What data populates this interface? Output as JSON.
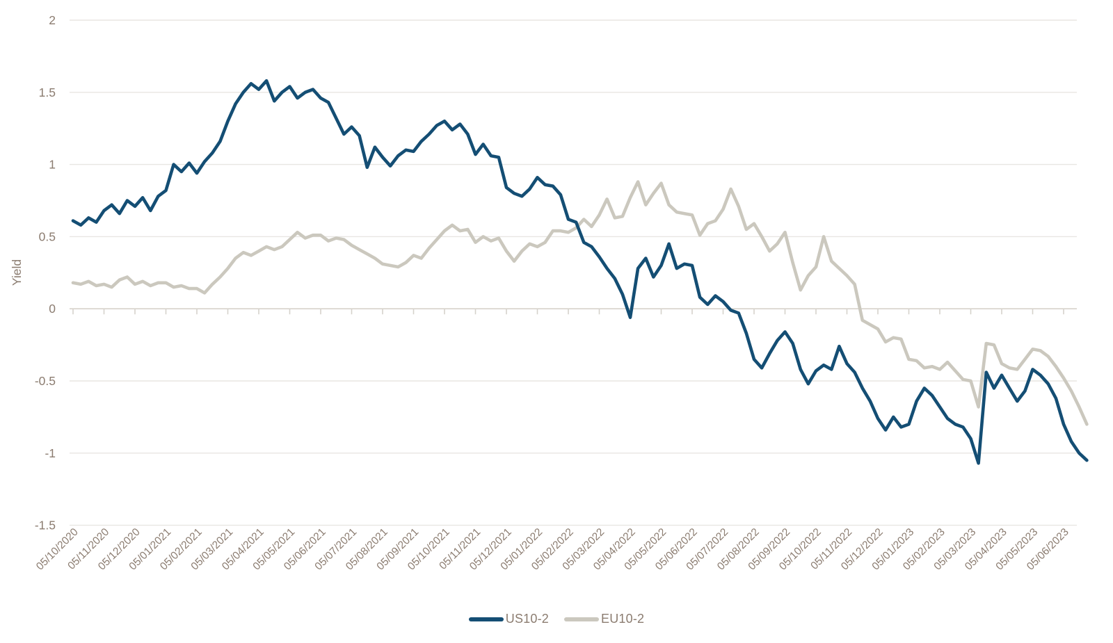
{
  "chart_data": {
    "type": "line",
    "title": "",
    "ylabel": "Yield",
    "ylim": [
      -1.5,
      2
    ],
    "y_ticks": [
      2,
      1.5,
      1,
      0.5,
      0,
      -0.5,
      -1,
      -1.5
    ],
    "grid": "horizontal",
    "legend_position": "bottom-center",
    "x_tick_labels": [
      "05/10/2020",
      "05/11/2020",
      "05/12/2020",
      "05/01/2021",
      "05/02/2021",
      "05/03/2021",
      "05/04/2021",
      "05/05/2021",
      "05/06/2021",
      "05/07/2021",
      "05/08/2021",
      "05/09/2021",
      "05/10/2021",
      "05/11/2021",
      "05/12/2021",
      "05/01/2022",
      "05/02/2022",
      "05/03/2022",
      "05/04/2022",
      "05/05/2022",
      "05/06/2022",
      "05/07/2022",
      "05/08/2022",
      "05/09/2022",
      "05/10/2022",
      "05/11/2022",
      "05/12/2022",
      "05/01/2023",
      "05/02/2023",
      "05/03/2023",
      "05/04/2023",
      "05/05/2023",
      "05/06/2023"
    ],
    "x_start_month_index": 0,
    "sample_step_months": 0.25,
    "series": [
      {
        "name": "US10-2",
        "color": "#144E74",
        "values": [
          0.61,
          0.58,
          0.63,
          0.6,
          0.68,
          0.72,
          0.66,
          0.75,
          0.71,
          0.77,
          0.68,
          0.78,
          0.82,
          1.0,
          0.95,
          1.01,
          0.94,
          1.02,
          1.08,
          1.16,
          1.3,
          1.42,
          1.5,
          1.56,
          1.52,
          1.58,
          1.44,
          1.5,
          1.54,
          1.46,
          1.5,
          1.52,
          1.46,
          1.43,
          1.32,
          1.21,
          1.26,
          1.2,
          0.98,
          1.12,
          1.05,
          0.99,
          1.06,
          1.1,
          1.09,
          1.16,
          1.21,
          1.27,
          1.3,
          1.24,
          1.28,
          1.21,
          1.07,
          1.14,
          1.06,
          1.05,
          0.84,
          0.8,
          0.78,
          0.83,
          0.91,
          0.86,
          0.85,
          0.79,
          0.62,
          0.6,
          0.46,
          0.43,
          0.36,
          0.28,
          0.21,
          0.1,
          -0.06,
          0.28,
          0.35,
          0.22,
          0.3,
          0.45,
          0.28,
          0.31,
          0.3,
          0.08,
          0.03,
          0.09,
          0.05,
          -0.01,
          -0.03,
          -0.17,
          -0.35,
          -0.41,
          -0.31,
          -0.22,
          -0.16,
          -0.24,
          -0.42,
          -0.52,
          -0.43,
          -0.39,
          -0.42,
          -0.26,
          -0.38,
          -0.44,
          -0.55,
          -0.64,
          -0.76,
          -0.84,
          -0.75,
          -0.82,
          -0.8,
          -0.64,
          -0.55,
          -0.6,
          -0.68,
          -0.76,
          -0.8,
          -0.82,
          -0.9,
          -1.07,
          -0.44,
          -0.55,
          -0.46,
          -0.55,
          -0.64,
          -0.57,
          -0.42,
          -0.46,
          -0.52,
          -0.62,
          -0.8,
          -0.92,
          -1.0,
          -1.05
        ]
      },
      {
        "name": "EU10-2",
        "color": "#CBC8BE",
        "values": [
          0.18,
          0.17,
          0.19,
          0.16,
          0.17,
          0.15,
          0.2,
          0.22,
          0.17,
          0.19,
          0.16,
          0.18,
          0.18,
          0.15,
          0.16,
          0.14,
          0.14,
          0.11,
          0.17,
          0.22,
          0.28,
          0.35,
          0.39,
          0.37,
          0.4,
          0.43,
          0.41,
          0.43,
          0.48,
          0.53,
          0.49,
          0.51,
          0.51,
          0.47,
          0.49,
          0.48,
          0.44,
          0.41,
          0.38,
          0.35,
          0.31,
          0.3,
          0.29,
          0.32,
          0.37,
          0.35,
          0.42,
          0.48,
          0.54,
          0.58,
          0.54,
          0.55,
          0.46,
          0.5,
          0.47,
          0.49,
          0.4,
          0.33,
          0.4,
          0.45,
          0.43,
          0.46,
          0.54,
          0.54,
          0.53,
          0.56,
          0.62,
          0.57,
          0.65,
          0.76,
          0.63,
          0.64,
          0.77,
          0.88,
          0.72,
          0.8,
          0.87,
          0.72,
          0.67,
          0.66,
          0.65,
          0.51,
          0.59,
          0.61,
          0.69,
          0.83,
          0.71,
          0.55,
          0.59,
          0.5,
          0.4,
          0.45,
          0.53,
          0.32,
          0.13,
          0.23,
          0.29,
          0.5,
          0.33,
          0.28,
          0.23,
          0.17,
          -0.08,
          -0.11,
          -0.14,
          -0.23,
          -0.2,
          -0.21,
          -0.35,
          -0.36,
          -0.41,
          -0.4,
          -0.42,
          -0.37,
          -0.43,
          -0.49,
          -0.5,
          -0.68,
          -0.24,
          -0.25,
          -0.38,
          -0.41,
          -0.42,
          -0.35,
          -0.28,
          -0.29,
          -0.33,
          -0.4,
          -0.48,
          -0.57,
          -0.68,
          -0.8
        ]
      }
    ],
    "colors": {
      "axis_text": "#8b7c70",
      "grid_line": "#e8e6e2",
      "zero_axis": "#d6d2cb",
      "background": "#ffffff"
    }
  },
  "legend": {
    "items": [
      {
        "label": "US10-2"
      },
      {
        "label": "EU10-2"
      }
    ]
  }
}
